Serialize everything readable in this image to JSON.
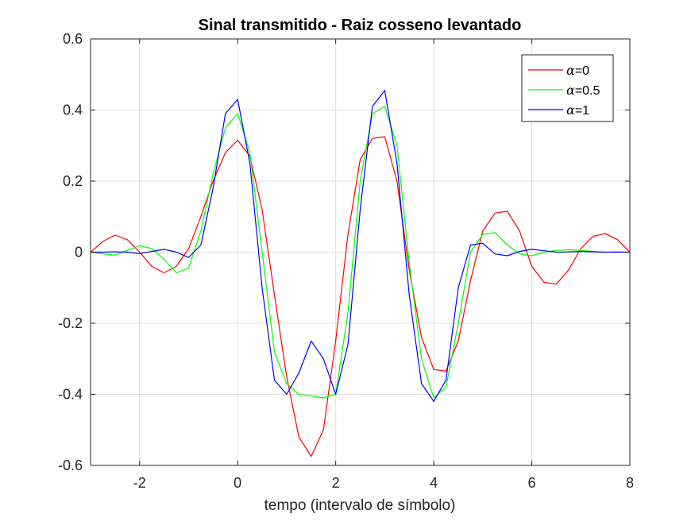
{
  "chart_data": {
    "type": "line",
    "title": "Sinal transmitido - Raiz cosseno levantado",
    "xlabel": "tempo (intervalo de símbolo)",
    "ylabel": "",
    "xlim": [
      -3,
      8
    ],
    "ylim": [
      -0.6,
      0.6
    ],
    "x_ticks": [
      -2,
      0,
      2,
      4,
      6,
      8
    ],
    "x_tick_labels": [
      "-2",
      "0",
      "2",
      "4",
      "6",
      "8"
    ],
    "y_ticks": [
      -0.6,
      -0.4,
      -0.2,
      0,
      0.2,
      0.4,
      0.6
    ],
    "y_tick_labels": [
      "-0.6",
      "-0.4",
      "-0.2",
      "0",
      "0.2",
      "0.4",
      "0.6"
    ],
    "grid": true,
    "legend_position": "top-right",
    "series": [
      {
        "name": "α=0",
        "legend_symbol": "α",
        "legend_value": "=0",
        "color": "#ff0000",
        "x": [
          -3,
          -2.75,
          -2.5,
          -2.25,
          -2,
          -1.75,
          -1.5,
          -1.25,
          -1,
          -0.75,
          -0.5,
          -0.25,
          0,
          0.25,
          0.5,
          0.75,
          1,
          1.25,
          1.5,
          1.75,
          2,
          2.25,
          2.5,
          2.75,
          3,
          3.25,
          3.5,
          3.75,
          4,
          4.25,
          4.5,
          4.75,
          5,
          5.25,
          5.5,
          5.75,
          6,
          6.25,
          6.5,
          6.75,
          7,
          7.25,
          7.5,
          7.75,
          8
        ],
        "y": [
          0.0,
          0.03,
          0.048,
          0.035,
          0.0,
          -0.04,
          -0.058,
          -0.04,
          0.01,
          0.1,
          0.2,
          0.28,
          0.315,
          0.27,
          0.12,
          -0.12,
          -0.35,
          -0.52,
          -0.575,
          -0.5,
          -0.25,
          0.05,
          0.26,
          0.32,
          0.325,
          0.2,
          -0.05,
          -0.24,
          -0.33,
          -0.335,
          -0.25,
          -0.08,
          0.06,
          0.11,
          0.115,
          0.06,
          -0.04,
          -0.085,
          -0.09,
          -0.05,
          0.01,
          0.045,
          0.052,
          0.035,
          0.0
        ]
      },
      {
        "name": "α=0.5",
        "legend_symbol": "α",
        "legend_value": "=0.5",
        "color": "#00ff00",
        "x": [
          -3,
          -2.75,
          -2.5,
          -2.25,
          -2,
          -1.75,
          -1.5,
          -1.25,
          -1,
          -0.75,
          -0.5,
          -0.25,
          0,
          0.25,
          0.5,
          0.75,
          1,
          1.25,
          1.5,
          1.75,
          2,
          2.25,
          2.5,
          2.75,
          3,
          3.25,
          3.5,
          3.75,
          4,
          4.25,
          4.5,
          4.75,
          5,
          5.25,
          5.5,
          5.75,
          6,
          6.25,
          6.5,
          6.75,
          7,
          7.25,
          7.5,
          7.75,
          8
        ],
        "y": [
          0.0,
          -0.005,
          -0.008,
          0.005,
          0.018,
          0.01,
          -0.02,
          -0.058,
          -0.045,
          0.06,
          0.22,
          0.35,
          0.39,
          0.28,
          0.0,
          -0.28,
          -0.37,
          -0.4,
          -0.405,
          -0.41,
          -0.4,
          -0.17,
          0.2,
          0.39,
          0.41,
          0.3,
          -0.03,
          -0.3,
          -0.41,
          -0.38,
          -0.2,
          0.0,
          0.05,
          0.055,
          0.02,
          -0.005,
          -0.01,
          0.0,
          0.005,
          0.007,
          0.005,
          0.002,
          0.0,
          0.001,
          0.0
        ]
      },
      {
        "name": "α=1",
        "legend_symbol": "α",
        "legend_value": "=1",
        "color": "#0000ff",
        "x": [
          -3,
          -2.75,
          -2.5,
          -2.25,
          -2,
          -1.75,
          -1.5,
          -1.25,
          -1,
          -0.75,
          -0.5,
          -0.25,
          0,
          0.25,
          0.5,
          0.75,
          1,
          1.25,
          1.5,
          1.75,
          2,
          2.25,
          2.5,
          2.75,
          3,
          3.25,
          3.5,
          3.75,
          4,
          4.25,
          4.5,
          4.75,
          5,
          5.25,
          5.5,
          5.75,
          6,
          6.25,
          6.5,
          6.75,
          7,
          7.25,
          7.5,
          7.75,
          8
        ],
        "y": [
          0.0,
          0.0,
          0.001,
          0.0,
          -0.004,
          0.002,
          0.008,
          0.0,
          -0.015,
          0.02,
          0.18,
          0.39,
          0.43,
          0.25,
          -0.1,
          -0.36,
          -0.4,
          -0.34,
          -0.25,
          -0.3,
          -0.4,
          -0.26,
          0.12,
          0.41,
          0.455,
          0.25,
          -0.12,
          -0.37,
          -0.42,
          -0.36,
          -0.1,
          0.02,
          0.025,
          -0.005,
          -0.01,
          0.002,
          0.008,
          0.004,
          0.0,
          0.001,
          0.002,
          0.001,
          0.0,
          0.0,
          0.0
        ]
      }
    ]
  }
}
